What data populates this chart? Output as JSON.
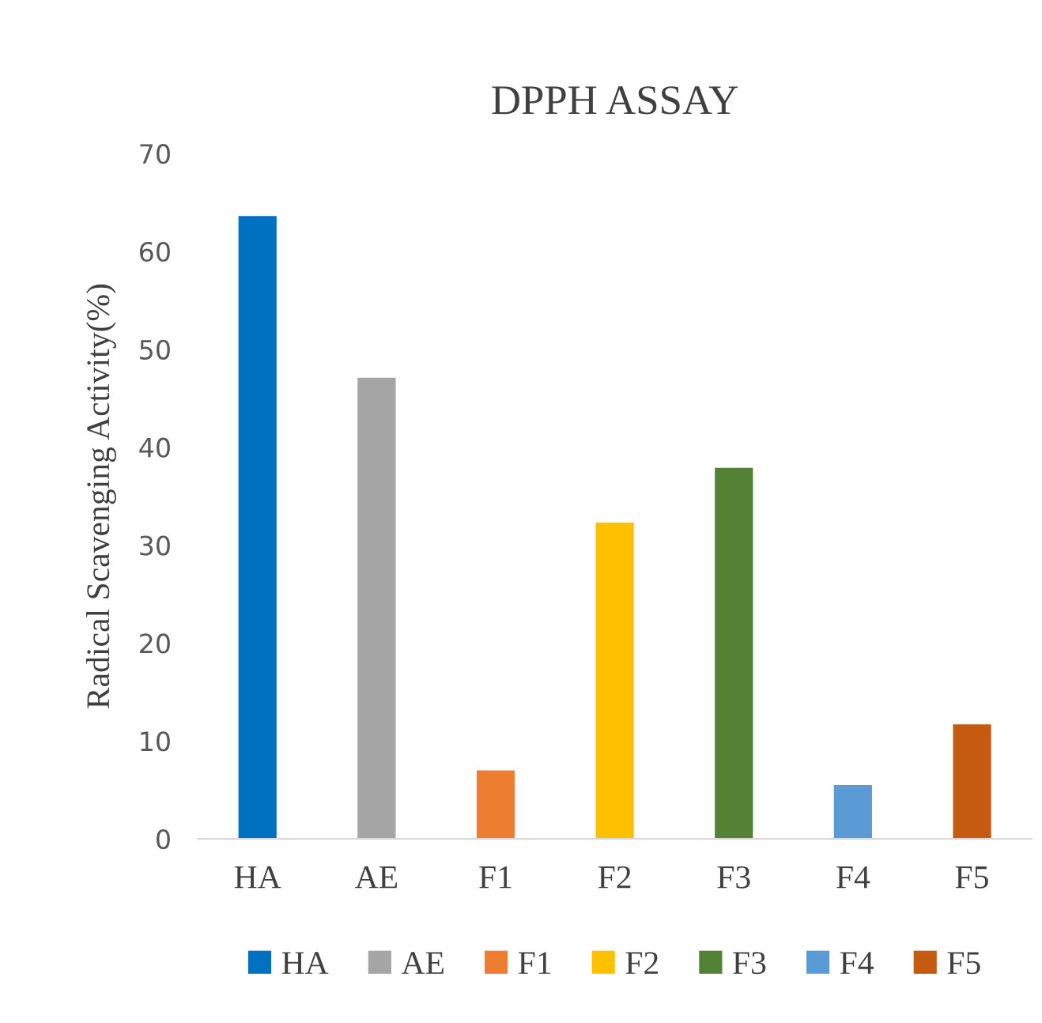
{
  "chart_data": {
    "type": "bar",
    "title": "DPPH ASSAY",
    "ylabel": "Radical Scavenging Activity(%)",
    "categories": [
      "HA",
      "AE",
      "F1",
      "F2",
      "F3",
      "F4",
      "F5"
    ],
    "series": [
      {
        "name": "HA",
        "color": "#0070c0",
        "values": [
          63.6,
          null,
          null,
          null,
          null,
          null,
          null
        ]
      },
      {
        "name": "AE",
        "color": "#a5a5a5",
        "values": [
          null,
          47.1,
          null,
          null,
          null,
          null,
          null
        ]
      },
      {
        "name": "F1",
        "color": "#ed7d31",
        "values": [
          null,
          null,
          7.0,
          null,
          null,
          null,
          null
        ]
      },
      {
        "name": "F2",
        "color": "#ffc000",
        "values": [
          null,
          null,
          null,
          32.3,
          null,
          null,
          null
        ]
      },
      {
        "name": "F3",
        "color": "#548235",
        "values": [
          null,
          null,
          null,
          null,
          37.9,
          null,
          null
        ]
      },
      {
        "name": "F4",
        "color": "#5b9bd5",
        "values": [
          null,
          null,
          null,
          null,
          null,
          5.5,
          null
        ]
      },
      {
        "name": "F5",
        "color": "#c55a11",
        "values": [
          null,
          null,
          null,
          null,
          null,
          null,
          11.7
        ]
      }
    ],
    "ylim": [
      0,
      70
    ],
    "yticks": [
      0,
      10,
      20,
      30,
      40,
      50,
      60,
      70
    ],
    "grid": false,
    "legend": "bottom"
  }
}
